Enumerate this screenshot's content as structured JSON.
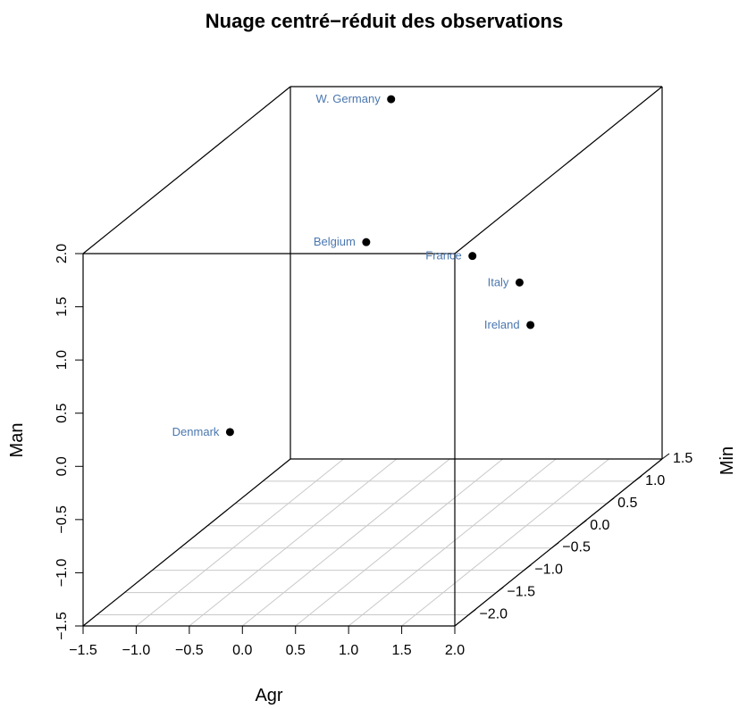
{
  "chart_data": {
    "type": "scatter3d",
    "title": "Nuage centré−réduit des observations",
    "xlabel": "Agr",
    "ylabel": "Min",
    "zlabel": "Man",
    "xlim": [
      -1.5,
      2.0
    ],
    "ylim": [
      -2.25,
      1.5
    ],
    "zlim": [
      -1.5,
      2.0
    ],
    "x_ticks": [
      "−1.5",
      "−1.0",
      "−0.5",
      "0.0",
      "0.5",
      "1.0",
      "1.5",
      "2.0"
    ],
    "y_ticks": [
      "−2.0",
      "−1.5",
      "−1.0",
      "−0.5",
      "0.0",
      "0.5",
      "1.0",
      "1.5"
    ],
    "z_ticks": [
      "−1.5",
      "−1.0",
      "−0.5",
      "0.0",
      "0.5",
      "1.0",
      "1.5",
      "2.0"
    ],
    "grid": "floor",
    "point_color": "#000000",
    "label_color": "#4a77b0",
    "points": [
      {
        "label": "W. Germany",
        "x": -0.38,
        "y": 1.17,
        "z": 2.02
      },
      {
        "label": "Belgium",
        "x": 0.0,
        "y": -0.01,
        "z": 1.17
      },
      {
        "label": "France",
        "x": 1.0,
        "y": -0.01,
        "z": 1.04
      },
      {
        "label": "Italy",
        "x": 1.48,
        "y": -0.08,
        "z": 0.82
      },
      {
        "label": "Ireland",
        "x": 1.01,
        "y": 1.02,
        "z": -0.04
      },
      {
        "label": "Denmark",
        "x": -0.58,
        "y": -1.36,
        "z": -0.05
      }
    ]
  }
}
